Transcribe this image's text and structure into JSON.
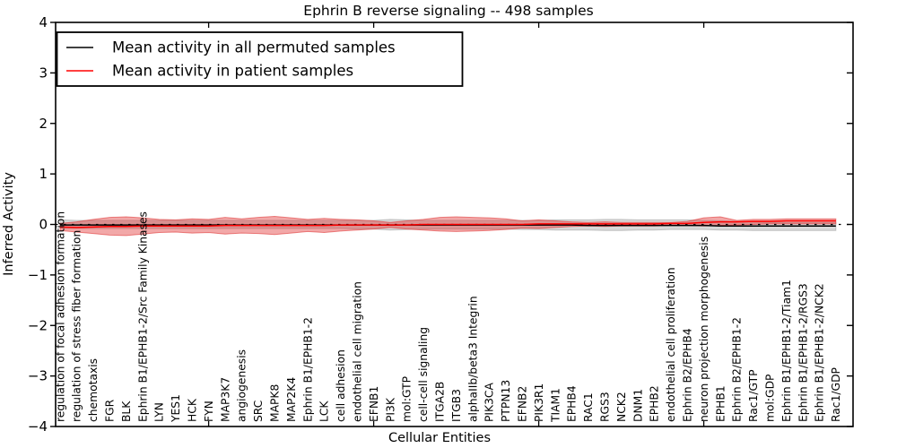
{
  "figure": {
    "title": "Ephrin B reverse signaling -- 498 samples",
    "xlabel": "Cellular Entities",
    "ylabel": "Inferred Activity",
    "legend": {
      "entries": [
        {
          "label": "Mean activity in all permuted samples",
          "color": "#000000"
        },
        {
          "label": "Mean activity in patient samples",
          "color": "#ff0000"
        }
      ]
    }
  },
  "chart_data": {
    "type": "line",
    "title": "Ephrin B reverse signaling -- 498 samples",
    "xlabel": "Cellular Entities",
    "ylabel": "Inferred Activity",
    "ylim": [
      -4,
      4
    ],
    "yticks": [
      4,
      3,
      2,
      1,
      0,
      -1,
      -2,
      -3,
      -4
    ],
    "x_major_tick_indices": [
      9,
      19,
      29,
      39
    ],
    "grid": false,
    "zero_line_dashed": true,
    "legend_position": "upper left",
    "categories": [
      "regulation of focal adhesion formation",
      "regulation of stress fiber formation",
      "chemotaxis",
      "FGR",
      "BLK",
      "Ephrin B1/EPHB1-2/Src Family Kinases",
      "LYN",
      "YES1",
      "HCK",
      "FYN",
      "MAP3K7",
      "angiogenesis",
      "SRC",
      "MAPK8",
      "MAP2K4",
      "Ephrin B1/EPHB1-2",
      "LCK",
      "cell adhesion",
      "endothelial cell migration",
      "EFNB1",
      "PI3K",
      "mol:GTP",
      "cell-cell signaling",
      "ITGA2B",
      "ITGB3",
      "alphaIIb/beta3 Integrin",
      "PIK3CA",
      "PTPN13",
      "EFNB2",
      "PIK3R1",
      "TIAM1",
      "EPHB4",
      "RAC1",
      "RGS3",
      "NCK2",
      "DNM1",
      "EPHB2",
      "endothelial cell proliferation",
      "Ephrin B2/EPHB4",
      "neuron projection morphogenesis",
      "EPHB1",
      "Ephrin B2/EPHB1-2",
      "Rac1/GTP",
      "mol:GDP",
      "Ephrin B1/EPHB1-2/Tiam1",
      "Ephrin B1/EPHB1-2/RGS3",
      "Ephrin B1/EPHB1-2/NCK2",
      "Rac1/GDP"
    ],
    "series": [
      {
        "name": "Mean activity in all permuted samples",
        "kind": "line",
        "color": "#000000",
        "values": [
          -0.01,
          -0.01,
          -0.01,
          -0.01,
          -0.01,
          -0.01,
          -0.01,
          -0.01,
          -0.01,
          -0.01,
          -0.01,
          -0.01,
          -0.01,
          -0.01,
          -0.01,
          -0.01,
          -0.01,
          -0.01,
          -0.01,
          -0.01,
          -0.01,
          -0.01,
          -0.01,
          -0.01,
          -0.01,
          -0.01,
          -0.01,
          -0.01,
          -0.01,
          -0.01,
          -0.01,
          -0.01,
          -0.02,
          -0.02,
          -0.02,
          -0.02,
          -0.02,
          -0.02,
          -0.02,
          -0.02,
          -0.03,
          -0.03,
          -0.03,
          -0.03,
          -0.03,
          -0.03,
          -0.03,
          -0.03
        ]
      },
      {
        "name": "Mean activity in patient samples",
        "kind": "line",
        "color": "#ff0000",
        "values": [
          -0.05,
          -0.06,
          -0.05,
          -0.04,
          -0.04,
          -0.03,
          -0.03,
          -0.03,
          -0.03,
          -0.03,
          -0.02,
          -0.02,
          -0.02,
          -0.02,
          -0.02,
          -0.02,
          -0.02,
          -0.01,
          -0.01,
          -0.01,
          -0.01,
          -0.01,
          0.0,
          0.0,
          0.0,
          0.0,
          0.0,
          0.0,
          0.0,
          0.01,
          0.01,
          0.01,
          0.01,
          0.01,
          0.01,
          0.01,
          0.01,
          0.02,
          0.02,
          0.04,
          0.05,
          0.05,
          0.06,
          0.06,
          0.07,
          0.07,
          0.07,
          0.07
        ]
      },
      {
        "name": "Permuted samples spread",
        "kind": "band",
        "color": "#999999",
        "opacity": 0.38,
        "upper": [
          0.09,
          0.08,
          0.08,
          0.08,
          0.08,
          0.08,
          0.08,
          0.08,
          0.08,
          0.08,
          0.08,
          0.08,
          0.08,
          0.08,
          0.08,
          0.08,
          0.08,
          0.08,
          0.08,
          0.08,
          0.1,
          0.09,
          0.08,
          0.08,
          0.08,
          0.08,
          0.08,
          0.08,
          0.08,
          0.08,
          0.09,
          0.09,
          0.09,
          0.1,
          0.1,
          0.09,
          0.09,
          0.09,
          0.09,
          0.08,
          0.07,
          0.06,
          0.05,
          0.04,
          0.04,
          0.04,
          0.04,
          0.04
        ],
        "lower": [
          -0.08,
          -0.08,
          -0.08,
          -0.08,
          -0.08,
          -0.08,
          -0.08,
          -0.08,
          -0.08,
          -0.08,
          -0.08,
          -0.08,
          -0.08,
          -0.08,
          -0.08,
          -0.08,
          -0.08,
          -0.08,
          -0.09,
          -0.09,
          -0.11,
          -0.1,
          -0.09,
          -0.09,
          -0.09,
          -0.09,
          -0.09,
          -0.09,
          -0.1,
          -0.1,
          -0.11,
          -0.11,
          -0.11,
          -0.12,
          -0.12,
          -0.11,
          -0.11,
          -0.1,
          -0.1,
          -0.1,
          -0.11,
          -0.11,
          -0.12,
          -0.12,
          -0.12,
          -0.12,
          -0.12,
          -0.12
        ]
      },
      {
        "name": "Patient samples spread",
        "kind": "band",
        "color": "#e03030",
        "opacity": 0.42,
        "upper": [
          0.02,
          0.05,
          0.1,
          0.14,
          0.15,
          0.13,
          0.1,
          0.09,
          0.11,
          0.1,
          0.14,
          0.11,
          0.14,
          0.16,
          0.13,
          0.1,
          0.12,
          0.1,
          0.09,
          0.07,
          0.04,
          0.07,
          0.1,
          0.14,
          0.15,
          0.14,
          0.13,
          0.11,
          0.07,
          0.09,
          0.07,
          0.05,
          0.04,
          0.05,
          0.04,
          0.04,
          0.04,
          0.04,
          0.06,
          0.13,
          0.15,
          0.08,
          0.1,
          0.1,
          0.11,
          0.11,
          0.11,
          0.11
        ],
        "lower": [
          -0.12,
          -0.15,
          -0.18,
          -0.21,
          -0.22,
          -0.19,
          -0.16,
          -0.15,
          -0.17,
          -0.16,
          -0.19,
          -0.17,
          -0.18,
          -0.2,
          -0.17,
          -0.14,
          -0.16,
          -0.13,
          -0.11,
          -0.09,
          -0.06,
          -0.09,
          -0.11,
          -0.13,
          -0.14,
          -0.13,
          -0.12,
          -0.1,
          -0.07,
          -0.08,
          -0.06,
          -0.04,
          -0.03,
          -0.04,
          -0.03,
          -0.03,
          -0.03,
          -0.02,
          -0.02,
          -0.03,
          -0.02,
          -0.01,
          0.0,
          0.01,
          0.01,
          0.01,
          0.01,
          0.01
        ]
      }
    ]
  }
}
